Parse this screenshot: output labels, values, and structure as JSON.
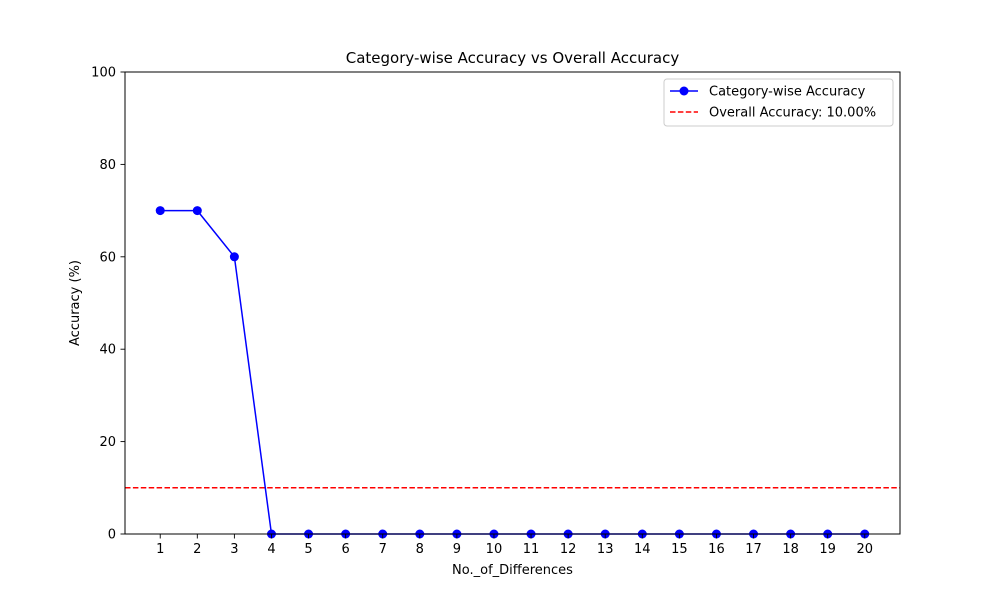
{
  "chart_data": {
    "type": "line",
    "title": "Category-wise Accuracy vs Overall Accuracy",
    "xlabel": "No._of_Differences",
    "ylabel": "Accuracy (%)",
    "x": [
      1,
      2,
      3,
      4,
      5,
      6,
      7,
      8,
      9,
      10,
      11,
      12,
      13,
      14,
      15,
      16,
      17,
      18,
      19,
      20
    ],
    "xlim": [
      0.05,
      20.95
    ],
    "ylim": [
      0,
      100
    ],
    "yticks": [
      0,
      20,
      40,
      60,
      80,
      100
    ],
    "grid": false,
    "legend_position": "top-right",
    "series": [
      {
        "name": "Category-wise Accuracy",
        "values": [
          70,
          70,
          60,
          0,
          0,
          0,
          0,
          0,
          0,
          0,
          0,
          0,
          0,
          0,
          0,
          0,
          0,
          0,
          0,
          0
        ],
        "color": "#0000ff",
        "style": "solid",
        "marker": "circle"
      }
    ],
    "reference_lines": [
      {
        "name": "Overall Accuracy: 10.00%",
        "y": 10,
        "color": "#ff0000",
        "style": "dashed"
      }
    ]
  }
}
